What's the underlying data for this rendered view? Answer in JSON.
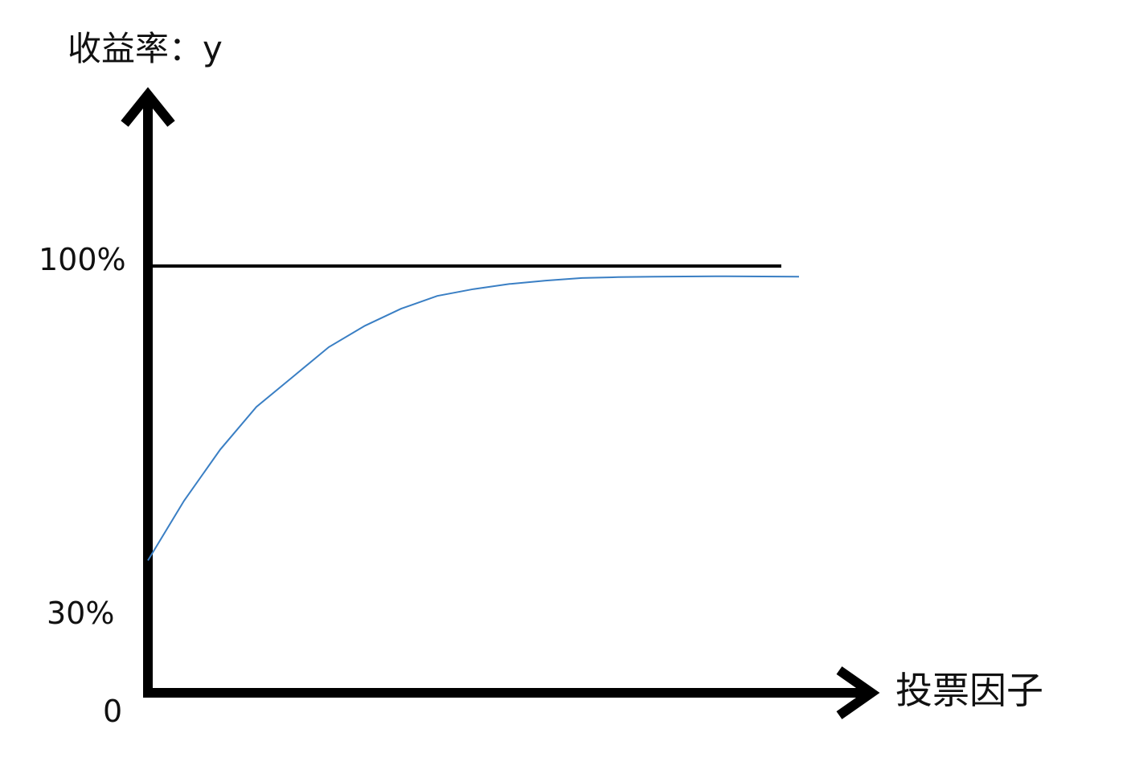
{
  "chart_data": {
    "type": "line",
    "ylabel": "收益率：y",
    "xlabel": "投票因子",
    "y_ticks": [
      "100%",
      "30%"
    ],
    "origin_label": "0",
    "ylim": [
      0,
      128
    ],
    "xlim": [
      0,
      1.0
    ],
    "reference_lines": [
      {
        "y": 100
      }
    ],
    "series": [
      {
        "color": "#3a7fc4",
        "points": [
          {
            "x": 0.0,
            "y": 31
          },
          {
            "x": 0.05,
            "y": 45
          },
          {
            "x": 0.1,
            "y": 57
          },
          {
            "x": 0.15,
            "y": 67
          },
          {
            "x": 0.2,
            "y": 74
          },
          {
            "x": 0.25,
            "y": 81
          },
          {
            "x": 0.3,
            "y": 86
          },
          {
            "x": 0.35,
            "y": 90
          },
          {
            "x": 0.4,
            "y": 93
          },
          {
            "x": 0.45,
            "y": 94.6
          },
          {
            "x": 0.5,
            "y": 95.8
          },
          {
            "x": 0.55,
            "y": 96.6
          },
          {
            "x": 0.6,
            "y": 97.2
          },
          {
            "x": 0.65,
            "y": 97.4
          },
          {
            "x": 0.7,
            "y": 97.5
          },
          {
            "x": 0.8,
            "y": 97.6
          },
          {
            "x": 0.9,
            "y": 97.5
          }
        ]
      }
    ]
  }
}
